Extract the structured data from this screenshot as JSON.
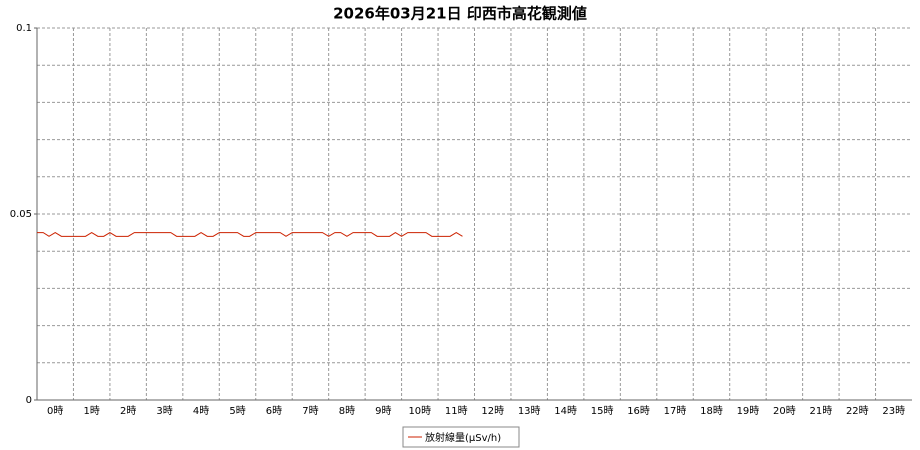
{
  "chart_data": {
    "type": "line",
    "title": "2026年03月21日 印西市高花観測値",
    "categories": [
      "0時",
      "1時",
      "2時",
      "3時",
      "4時",
      "5時",
      "6時",
      "7時",
      "8時",
      "9時",
      "10時",
      "11時",
      "12時",
      "13時",
      "14時",
      "15時",
      "16時",
      "17時",
      "18時",
      "19時",
      "20時",
      "21時",
      "22時",
      "23時"
    ],
    "xlim": [
      0,
      24
    ],
    "ylim": [
      0,
      0.1
    ],
    "yticks": [
      0,
      0.05,
      0.1
    ],
    "ygrid": [
      0,
      0.01,
      0.02,
      0.03,
      0.04,
      0.05,
      0.06,
      0.07,
      0.08,
      0.09,
      0.1
    ],
    "grid": true,
    "legend": "bottom",
    "series": [
      {
        "name": "放射線量(μSv/h)",
        "color": "#cc2200",
        "x": [
          0,
          0.17,
          0.33,
          0.5,
          0.67,
          0.83,
          1,
          1.17,
          1.33,
          1.5,
          1.67,
          1.83,
          2,
          2.17,
          2.33,
          2.5,
          2.67,
          2.83,
          3,
          3.17,
          3.33,
          3.5,
          3.67,
          3.83,
          4,
          4.17,
          4.33,
          4.5,
          4.67,
          4.83,
          5,
          5.17,
          5.33,
          5.5,
          5.67,
          5.83,
          6,
          6.17,
          6.33,
          6.5,
          6.67,
          6.83,
          7,
          7.17,
          7.33,
          7.5,
          7.67,
          7.83,
          8,
          8.17,
          8.33,
          8.5,
          8.67,
          8.83,
          9,
          9.17,
          9.33,
          9.5,
          9.67,
          9.83,
          10,
          10.17,
          10.33,
          10.5,
          10.67,
          10.83,
          11,
          11.17,
          11.33,
          11.5,
          11.67
        ],
        "values": [
          0.045,
          0.045,
          0.044,
          0.045,
          0.044,
          0.044,
          0.044,
          0.044,
          0.044,
          0.045,
          0.044,
          0.044,
          0.045,
          0.044,
          0.044,
          0.044,
          0.045,
          0.045,
          0.045,
          0.045,
          0.045,
          0.045,
          0.045,
          0.044,
          0.044,
          0.044,
          0.044,
          0.045,
          0.044,
          0.044,
          0.045,
          0.045,
          0.045,
          0.045,
          0.044,
          0.044,
          0.045,
          0.045,
          0.045,
          0.045,
          0.045,
          0.044,
          0.045,
          0.045,
          0.045,
          0.045,
          0.045,
          0.045,
          0.044,
          0.045,
          0.045,
          0.044,
          0.045,
          0.045,
          0.045,
          0.045,
          0.044,
          0.044,
          0.044,
          0.045,
          0.044,
          0.045,
          0.045,
          0.045,
          0.045,
          0.044,
          0.044,
          0.044,
          0.044,
          0.045,
          0.044
        ]
      }
    ]
  }
}
